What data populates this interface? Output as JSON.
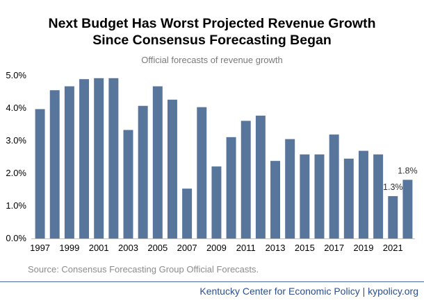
{
  "header": {
    "title_line1": "Next Budget Has Worst Projected Revenue Growth",
    "title_line2": "Since Consensus Forecasting Began",
    "subtitle": "Official forecasts of revenue growth"
  },
  "source": "Source: Consensus Forecasting Group Official Forecasts.",
  "footer": "Kentucky Center for Economic Policy | kypolicy.org",
  "colors": {
    "bar": "#58769c",
    "text": "#000000",
    "footer": "#2c4f8a"
  },
  "chart_data": {
    "type": "bar",
    "title": "Next Budget Has Worst Projected Revenue Growth Since Consensus Forecasting Began",
    "subtitle": "Official forecasts of revenue growth",
    "categories": [
      "1997",
      "1998",
      "1999",
      "2000",
      "2001",
      "2002",
      "2003",
      "2004",
      "2005",
      "2006",
      "2007",
      "2008",
      "2009",
      "2010",
      "2011",
      "2012",
      "2013",
      "2014",
      "2015",
      "2016",
      "2017",
      "2018",
      "2019",
      "2020",
      "2021",
      "2022"
    ],
    "values": [
      3.97,
      4.55,
      4.67,
      4.89,
      4.92,
      4.92,
      3.33,
      4.07,
      4.67,
      4.26,
      1.53,
      4.03,
      2.21,
      3.11,
      3.61,
      3.77,
      2.38,
      3.05,
      2.58,
      2.58,
      3.19,
      2.45,
      2.69,
      2.58,
      1.3,
      1.8
    ],
    "tick_labels_x": [
      "1997",
      "1999",
      "2001",
      "2003",
      "2005",
      "2007",
      "2009",
      "2011",
      "2013",
      "2015",
      "2017",
      "2019",
      "2021"
    ],
    "yticks": [
      "0.0%",
      "1.0%",
      "2.0%",
      "3.0%",
      "4.0%",
      "5.0%"
    ],
    "ylim": [
      0,
      5
    ],
    "data_labels": [
      {
        "category": "2021",
        "text": "1.3%"
      },
      {
        "category": "2022",
        "text": "1.8%"
      }
    ],
    "grid": false,
    "legend": "none"
  }
}
